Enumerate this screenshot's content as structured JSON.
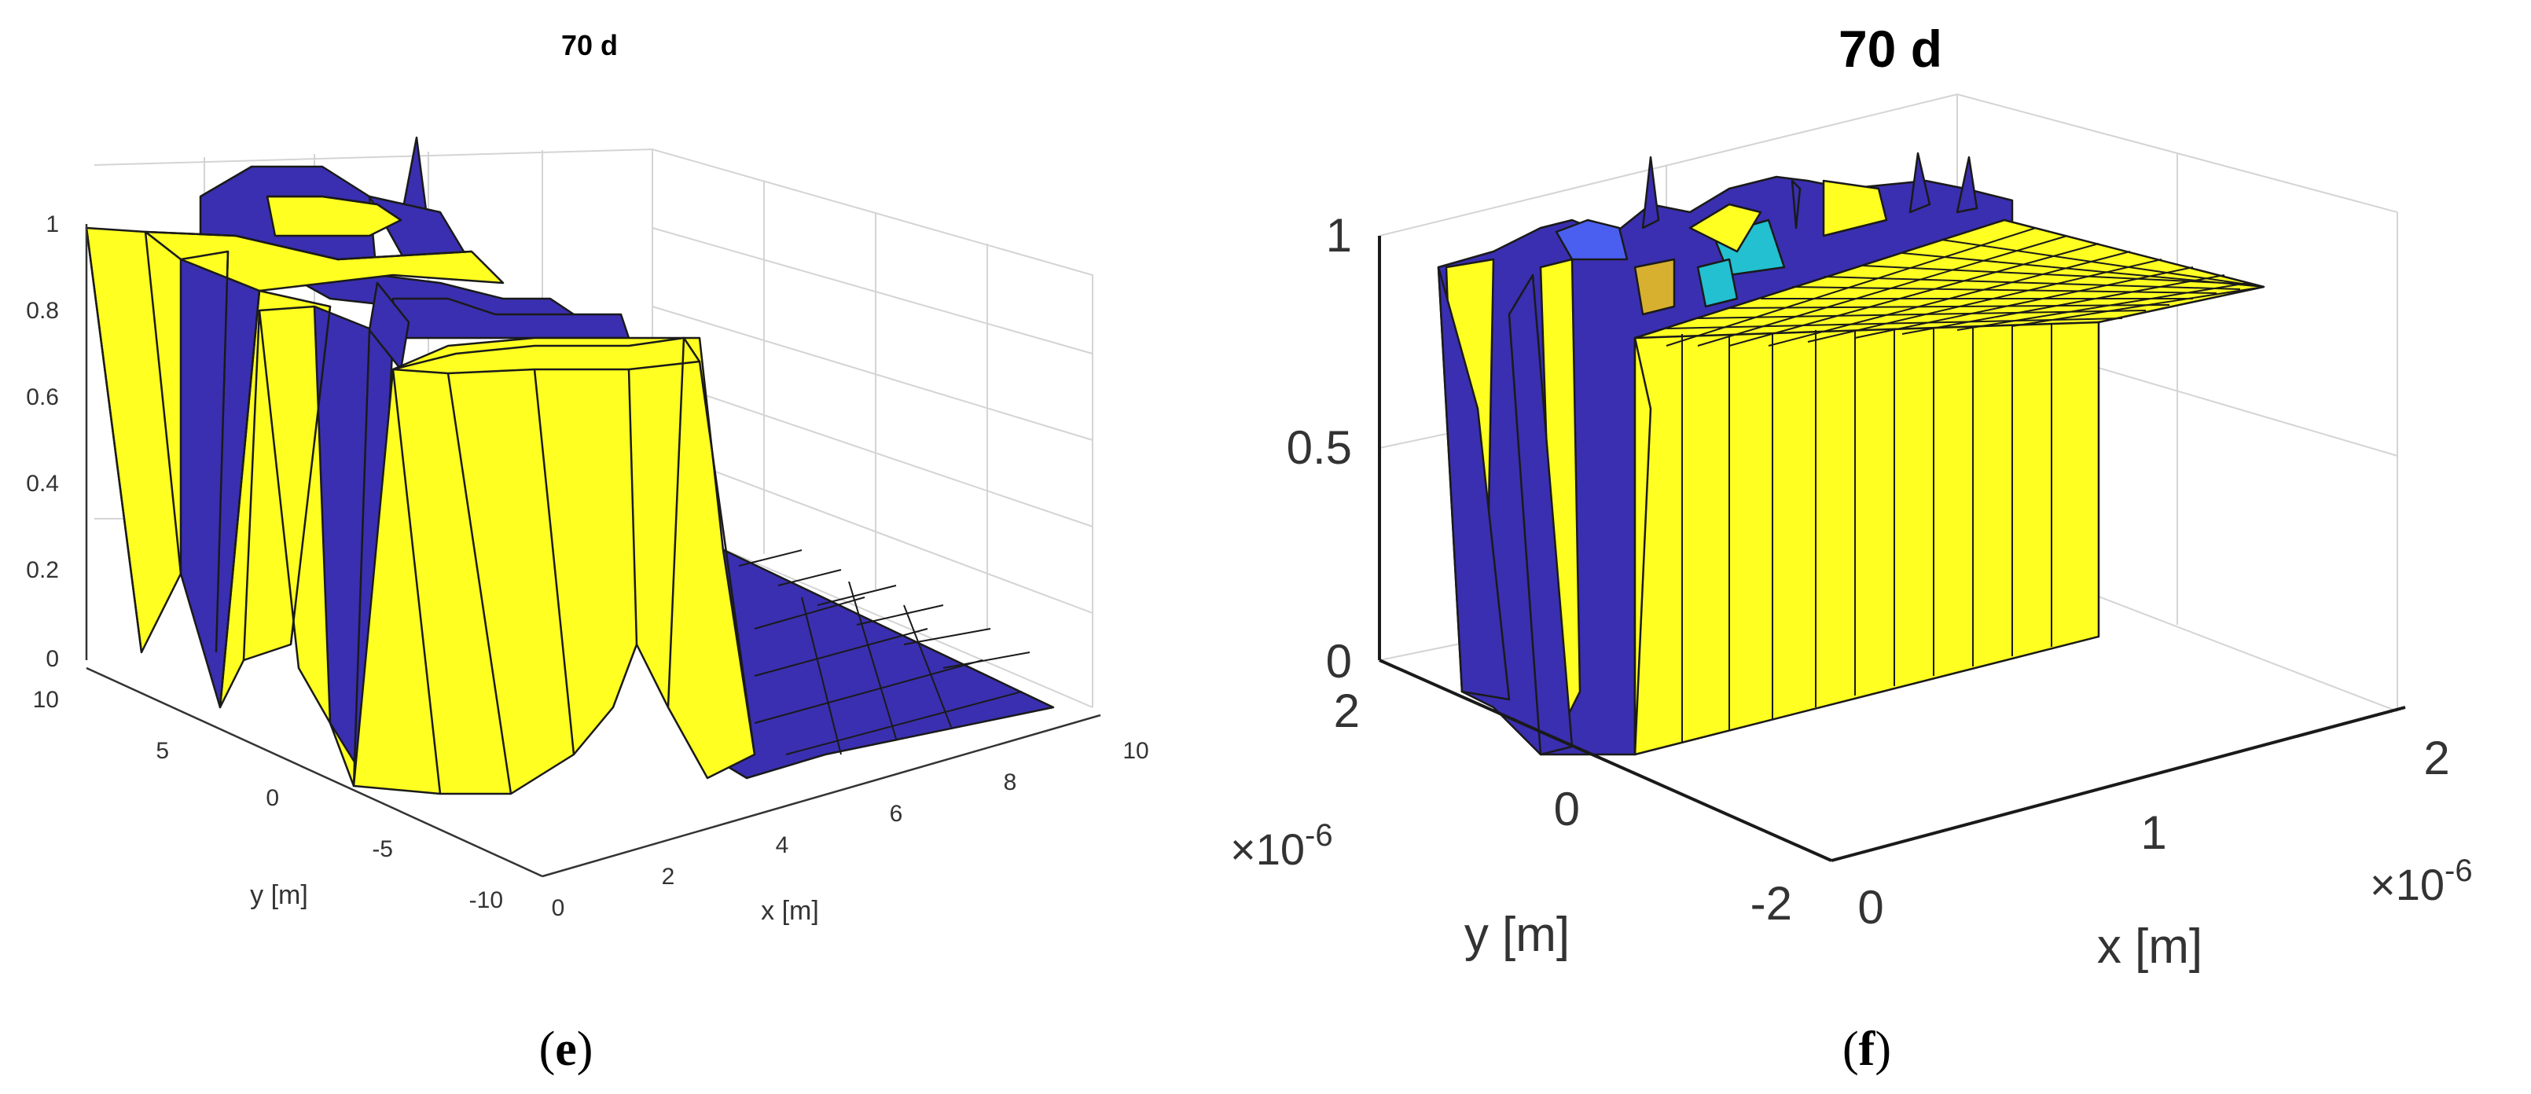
{
  "colors": {
    "surface_high": "#ffff22",
    "surface_low": "#3a2fb0",
    "surface_cyan": "#22c0d0",
    "surface_mid": "#d8b030",
    "surface_blue": "#4a5ff0",
    "edge": "#1a1a1a",
    "grid": "#d4d4d4"
  },
  "chart_data": [
    {
      "type": "surface",
      "panel": "e",
      "title": "70 d",
      "xlabel": "x [m]",
      "ylabel": "y [m]",
      "zlabel": "",
      "xlim": [
        0,
        10
      ],
      "ylim": [
        -10,
        10
      ],
      "zlim": [
        0,
        1
      ],
      "xticks": [
        "0",
        "2",
        "4",
        "6",
        "8",
        "10"
      ],
      "yticks": [
        "10",
        "5",
        "0",
        "-5",
        "-10"
      ],
      "zticks": [
        "1",
        "0.8",
        "0.6",
        "0.4",
        "0.2",
        "0"
      ],
      "grid": true,
      "colormap": "parula",
      "description_values": {
        "x_region_saturated": [
          0,
          4
        ],
        "x_region_zero": [
          4,
          10
        ],
        "z_max": 1,
        "z_min": 0
      },
      "caption": "(e)",
      "caption_letter": "e"
    },
    {
      "type": "surface",
      "panel": "f",
      "title": "70 d",
      "xlabel": "x [m]",
      "ylabel": "y [m]",
      "zlabel": "",
      "xlim": [
        0,
        2e-06
      ],
      "ylim": [
        -2e-06,
        2e-06
      ],
      "zlim": [
        0,
        1
      ],
      "xticks": [
        "0",
        "1",
        "2"
      ],
      "yticks": [
        "2",
        "0",
        "-2"
      ],
      "zticks": [
        "1",
        "0.5",
        "0"
      ],
      "x_exponent_base": "×10",
      "x_exponent_power": "-6",
      "y_exponent_base": "×10",
      "y_exponent_power": "-6",
      "grid": true,
      "colormap": "parula",
      "description_values": {
        "plateau_value": 1,
        "z_max": 1,
        "z_min": 0
      },
      "caption": "(f)",
      "caption_letter": "f"
    }
  ]
}
